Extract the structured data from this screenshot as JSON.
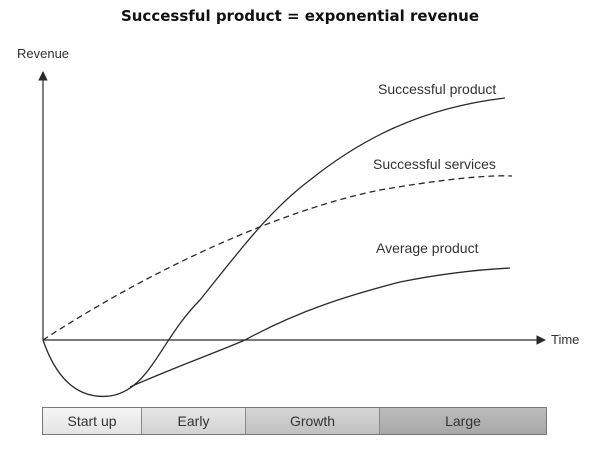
{
  "title": "Successful product = exponential revenue",
  "axes": {
    "y_label": "Revenue",
    "x_label": "Time"
  },
  "curves": [
    {
      "name": "successful-product",
      "label": "Successful product",
      "style": "solid"
    },
    {
      "name": "successful-services",
      "label": "Successful services",
      "style": "dashed"
    },
    {
      "name": "average-product",
      "label": "Average product",
      "style": "solid"
    }
  ],
  "phases": [
    "Start up",
    "Early",
    "Growth",
    "Large"
  ],
  "colors": {
    "line": "#2a2a2a",
    "text": "#333333"
  }
}
